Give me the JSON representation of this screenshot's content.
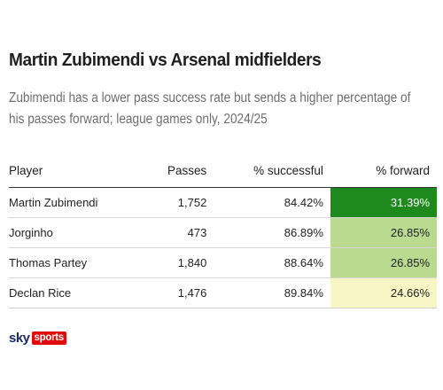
{
  "title": "Martin Zubimendi vs Arsenal midfielders",
  "subtitle": "Zubimendi has a lower pass success rate but sends a higher percentage of his passes forward; league games only, 2024/25",
  "table": {
    "columns": [
      "Player",
      "Passes",
      "% successful",
      "% forward"
    ],
    "rows": [
      {
        "player": "Martin Zubimendi",
        "passes": "1,752",
        "successful": "84.42%",
        "forward": "31.39%",
        "forward_color": "#1e8a1e",
        "forward_text_color": "#ffffff"
      },
      {
        "player": "Jorginho",
        "passes": "473",
        "successful": "86.89%",
        "forward": "26.85%",
        "forward_color": "#b9da8f",
        "forward_text_color": "#222222"
      },
      {
        "player": "Thomas Partey",
        "passes": "1,840",
        "successful": "88.64%",
        "forward": "26.85%",
        "forward_color": "#b9da8f",
        "forward_text_color": "#222222"
      },
      {
        "player": "Declan Rice",
        "passes": "1,476",
        "successful": "89.84%",
        "forward": "24.66%",
        "forward_color": "#f9f6c6",
        "forward_text_color": "#222222"
      }
    ]
  },
  "footer": {
    "brand_sky": "sky",
    "brand_sports": "sports"
  }
}
